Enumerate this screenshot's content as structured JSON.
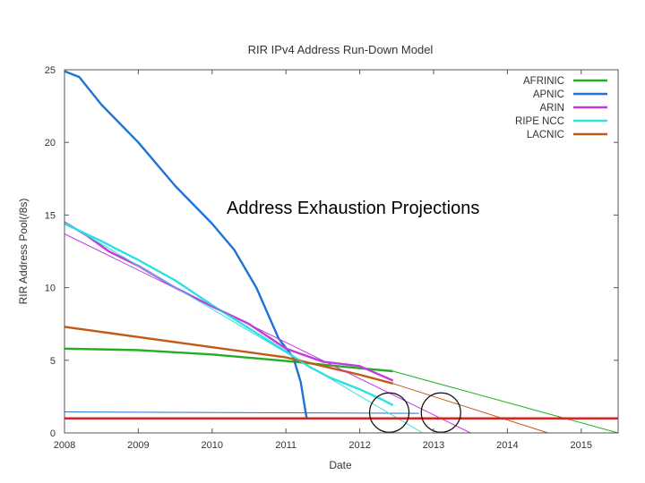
{
  "chart_data": {
    "type": "line",
    "title": "RIR IPv4 Address Run-Down Model",
    "overlay_text": "Address Exhaustion Projections",
    "xlabel": "Date",
    "ylabel": "RIR Address Pool(/8s)",
    "xlim": [
      2008,
      2015.5
    ],
    "ylim": [
      0,
      25
    ],
    "x_ticks": [
      "2008",
      "2009",
      "2010",
      "2011",
      "2012",
      "2013",
      "2014",
      "2015"
    ],
    "y_ticks": [
      "0",
      "5",
      "10",
      "15",
      "20",
      "25"
    ],
    "grid": false,
    "legend_position": "top-right",
    "series": [
      {
        "name": "AFRINIC",
        "color": "#22b022",
        "x": [
          2008,
          2009,
          2010,
          2011,
          2011.5,
          2012,
          2012.45
        ],
        "y": [
          5.8,
          5.7,
          5.4,
          4.95,
          4.7,
          4.45,
          4.25
        ]
      },
      {
        "name": "APNIC",
        "color": "#1d74d4",
        "x": [
          2008,
          2008.2,
          2008.5,
          2009,
          2009.5,
          2010,
          2010.3,
          2010.6,
          2010.9,
          2011.1,
          2011.2,
          2011.28,
          2011.35,
          2012.45
        ],
        "y": [
          24.9,
          24.5,
          22.6,
          20.0,
          17.0,
          14.4,
          12.6,
          10.0,
          6.5,
          5.2,
          3.5,
          1.0,
          1.0,
          1.0
        ]
      },
      {
        "name": "ARIN",
        "color": "#c13be0",
        "x": [
          2008,
          2008.3,
          2008.6,
          2009,
          2009.5,
          2010,
          2010.5,
          2011,
          2011.5,
          2012,
          2012.45
        ],
        "y": [
          14.5,
          13.6,
          12.5,
          11.5,
          10.0,
          8.7,
          7.5,
          5.8,
          4.9,
          4.6,
          3.6
        ]
      },
      {
        "name": "RIPE NCC",
        "color": "#2ee0e0",
        "x": [
          2008,
          2008.5,
          2009,
          2009.5,
          2010,
          2010.5,
          2011,
          2011.3,
          2011.6,
          2012,
          2012.3,
          2012.45
        ],
        "y": [
          14.4,
          13.2,
          11.9,
          10.5,
          8.8,
          7.2,
          5.6,
          4.6,
          3.8,
          3.0,
          2.3,
          1.9
        ]
      },
      {
        "name": "LACNIC",
        "color": "#c25a14",
        "x": [
          2008,
          2009,
          2010,
          2011,
          2011.5,
          2012,
          2012.45
        ],
        "y": [
          7.3,
          6.6,
          5.9,
          5.2,
          4.6,
          4.0,
          3.4
        ]
      }
    ],
    "projections": [
      {
        "series": "AFRINIC",
        "color": "#22b022",
        "x": [
          2012.45,
          2015.5
        ],
        "y": [
          4.25,
          0.0
        ]
      },
      {
        "series": "APNIC",
        "color": "#1d74d4",
        "x": [
          2008,
          2012.8
        ],
        "y": [
          1.45,
          1.35
        ]
      },
      {
        "series": "ARIN",
        "color": "#c13be0",
        "x": [
          2008,
          2013.5
        ],
        "y": [
          13.7,
          0.0
        ]
      },
      {
        "series": "RIPE NCC",
        "color": "#2ee0e0",
        "x": [
          2008,
          2012.85
        ],
        "y": [
          14.5,
          0.0
        ]
      },
      {
        "series": "LACNIC",
        "color": "#c25a14",
        "x": [
          2012.45,
          2014.55
        ],
        "y": [
          3.4,
          0.0
        ]
      }
    ],
    "reference_line": {
      "color": "#dd2222",
      "y": 1.0
    },
    "highlight_circles": [
      {
        "x": 2012.4,
        "y": 1.4
      },
      {
        "x": 2013.1,
        "y": 1.4
      }
    ]
  }
}
